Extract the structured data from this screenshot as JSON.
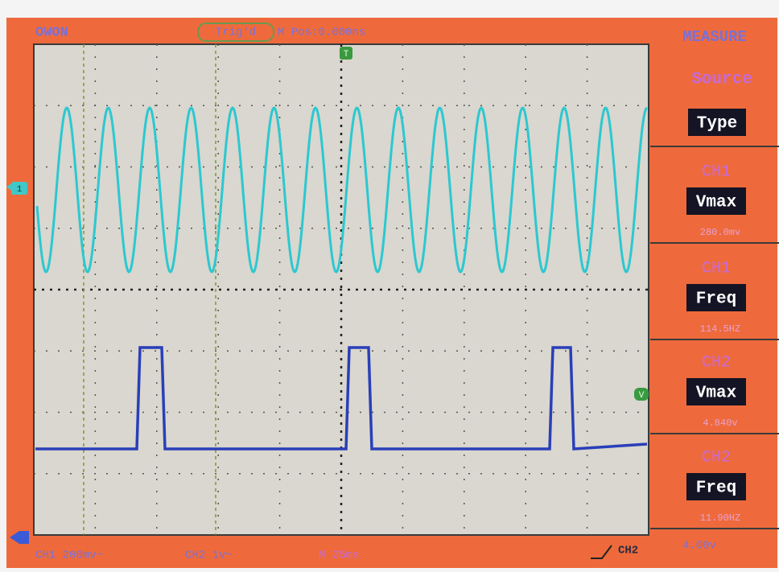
{
  "header": {
    "brand": "OWON",
    "trigger_status": "Trig'd",
    "horizontal_position": "M Pos:0.000ns"
  },
  "measure_panel": {
    "title": "MEASURE",
    "source_label": "Source",
    "type_label": "Type",
    "items": [
      {
        "channel": "CH1",
        "measurement": "Vmax",
        "reading": "280.0mv"
      },
      {
        "channel": "CH1",
        "measurement": "Freq",
        "reading": "114.5HZ"
      },
      {
        "channel": "CH2",
        "measurement": "Vmax",
        "reading": "4.840v"
      },
      {
        "channel": "CH2",
        "measurement": "Freq",
        "reading": "11.90HZ"
      }
    ]
  },
  "status_bar": {
    "ch1_scale": "CH1 200mv~",
    "ch2_scale": "CH2 1v~",
    "timebase": "M 25ms",
    "trigger_source": "CH2",
    "trigger_level": "4.00v"
  },
  "markers": {
    "trigger": "T",
    "ch1": "1",
    "ch2_level": "V"
  }
}
